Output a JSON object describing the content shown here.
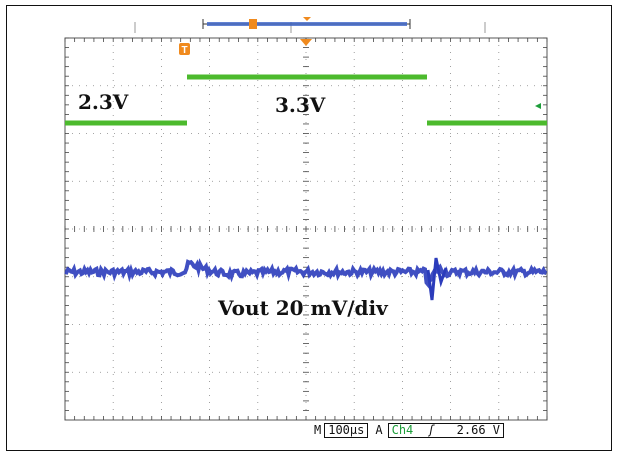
{
  "annotations": {
    "low_voltage": "2.3V",
    "high_voltage": "3.3V",
    "vout_scale": "Vout 20 mV/div"
  },
  "status_bar": {
    "m_label": "M",
    "timebase": "100µs",
    "a_label": "A",
    "channel": "Ch4",
    "edge_symbol": "ʃ",
    "trigger_level": "2.66 V"
  },
  "markers": {
    "trigger_marker_label": "T"
  },
  "colors": {
    "input_trace": "#4cba2d",
    "output_trace": "#2b3cbb",
    "trigger_orange": "#f08a1e",
    "channel_green": "#1d9e3a"
  }
}
